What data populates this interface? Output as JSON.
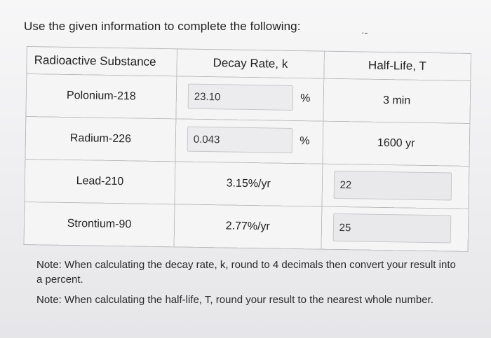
{
  "instruction": "Use the given information to complete the following:",
  "table": {
    "headers": [
      "Radioactive Substance",
      "Decay Rate, k",
      "Half-Life, T"
    ],
    "rows": [
      {
        "substance": "Polonium-218",
        "decay_input": "23.10",
        "decay_unit": "%",
        "half_life": "3 min"
      },
      {
        "substance": "Radium-226",
        "decay_input": "0.043",
        "decay_unit": "%",
        "half_life": "1600 yr"
      },
      {
        "substance": "Lead-210",
        "decay_rate": "3.15%/yr",
        "half_life_input": "22"
      },
      {
        "substance": "Strontium-90",
        "decay_rate": "2.77%/yr",
        "half_life_input": "25"
      }
    ]
  },
  "notes": [
    {
      "label": "Note:",
      "text": "When calculating the decay rate, k, round to 4 decimals then convert your result into a percent."
    },
    {
      "label": "Note:",
      "text": "When calculating the half-life, T, round your result to the nearest whole number."
    }
  ]
}
